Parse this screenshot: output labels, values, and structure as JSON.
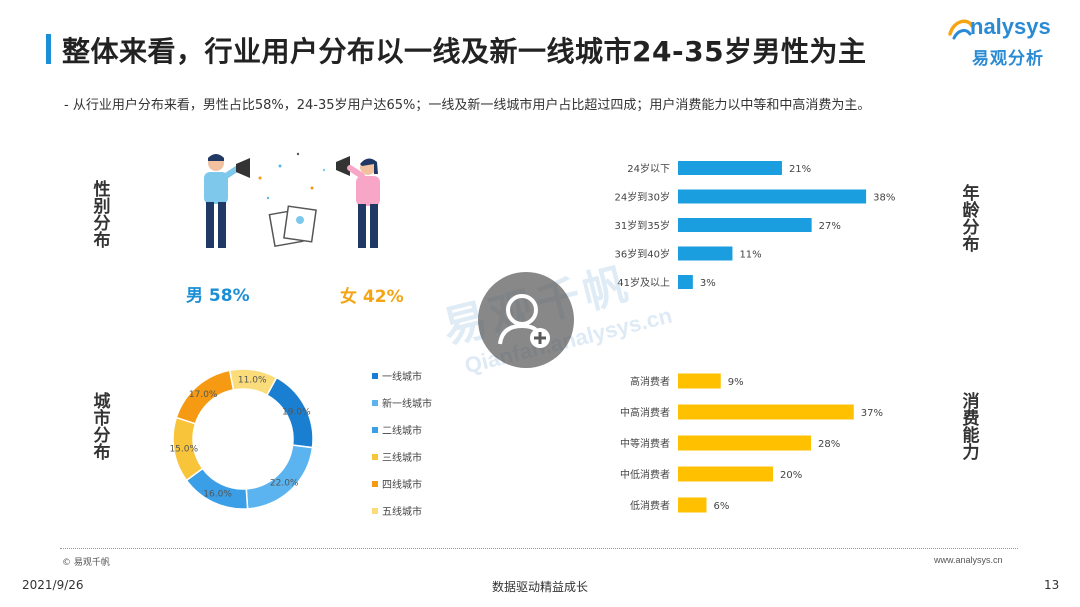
{
  "header": {
    "title": "整体来看，行业用户分布以一线及新一线城市24-35岁男性为主",
    "logo_en": "nalysys",
    "logo_cn": "易观分析"
  },
  "subtitle": "-  从行业用户分布来看，男性占比58%，24-35岁用户达65%；一线及新一线城市用户占比超过四成；用户消费能力以中等和中高消费为主。",
  "sections": {
    "gender": "性别分布",
    "age": "年龄分布",
    "city": "城市分布",
    "consumption": "消费能力"
  },
  "gender": {
    "male": "男 58%",
    "female": "女 42%"
  },
  "watermark": {
    "text": "易观千帆",
    "url": "Qianfan.analysys.cn"
  },
  "colors": {
    "blue": "#1b8fd6",
    "orange": "#f5a514",
    "gold": "#ffc000"
  },
  "chart_data": [
    {
      "type": "bar",
      "orientation": "horizontal",
      "categories": [
        "24岁以下",
        "24岁到30岁",
        "31岁到35岁",
        "36岁到40岁",
        "41岁及以上"
      ],
      "values": [
        21,
        38,
        27,
        11,
        3
      ],
      "labels": [
        "21%",
        "38%",
        "27%",
        "11%",
        "3%"
      ],
      "color": "#1a9ee0"
    },
    {
      "type": "pie",
      "donut": true,
      "categories": [
        "一线城市",
        "新一线城市",
        "二线城市",
        "三线城市",
        "四线城市",
        "五线城市"
      ],
      "values": [
        19.0,
        22.0,
        16.0,
        15.0,
        17.0,
        11.0
      ],
      "labels": [
        "19.0%",
        "22.0%",
        "16.0%",
        "15.0%",
        "17.0%",
        "11.0%"
      ],
      "colors": [
        "#1a7fd0",
        "#5bb4f0",
        "#3a9fe6",
        "#f8c43a",
        "#f59a12",
        "#fbdc7a"
      ]
    },
    {
      "type": "bar",
      "orientation": "horizontal",
      "categories": [
        "高消费者",
        "中高消费者",
        "中等消费者",
        "中低消费者",
        "低消费者"
      ],
      "values": [
        9,
        37,
        28,
        20,
        6
      ],
      "labels": [
        "9%",
        "37%",
        "28%",
        "20%",
        "6%"
      ],
      "color": "#ffc000"
    }
  ],
  "footer": {
    "copyright": "© 易观千帆",
    "url": "www.analysys.cn",
    "date": "2021/9/26",
    "slogan": "数据驱动精益成长",
    "page": "13"
  }
}
